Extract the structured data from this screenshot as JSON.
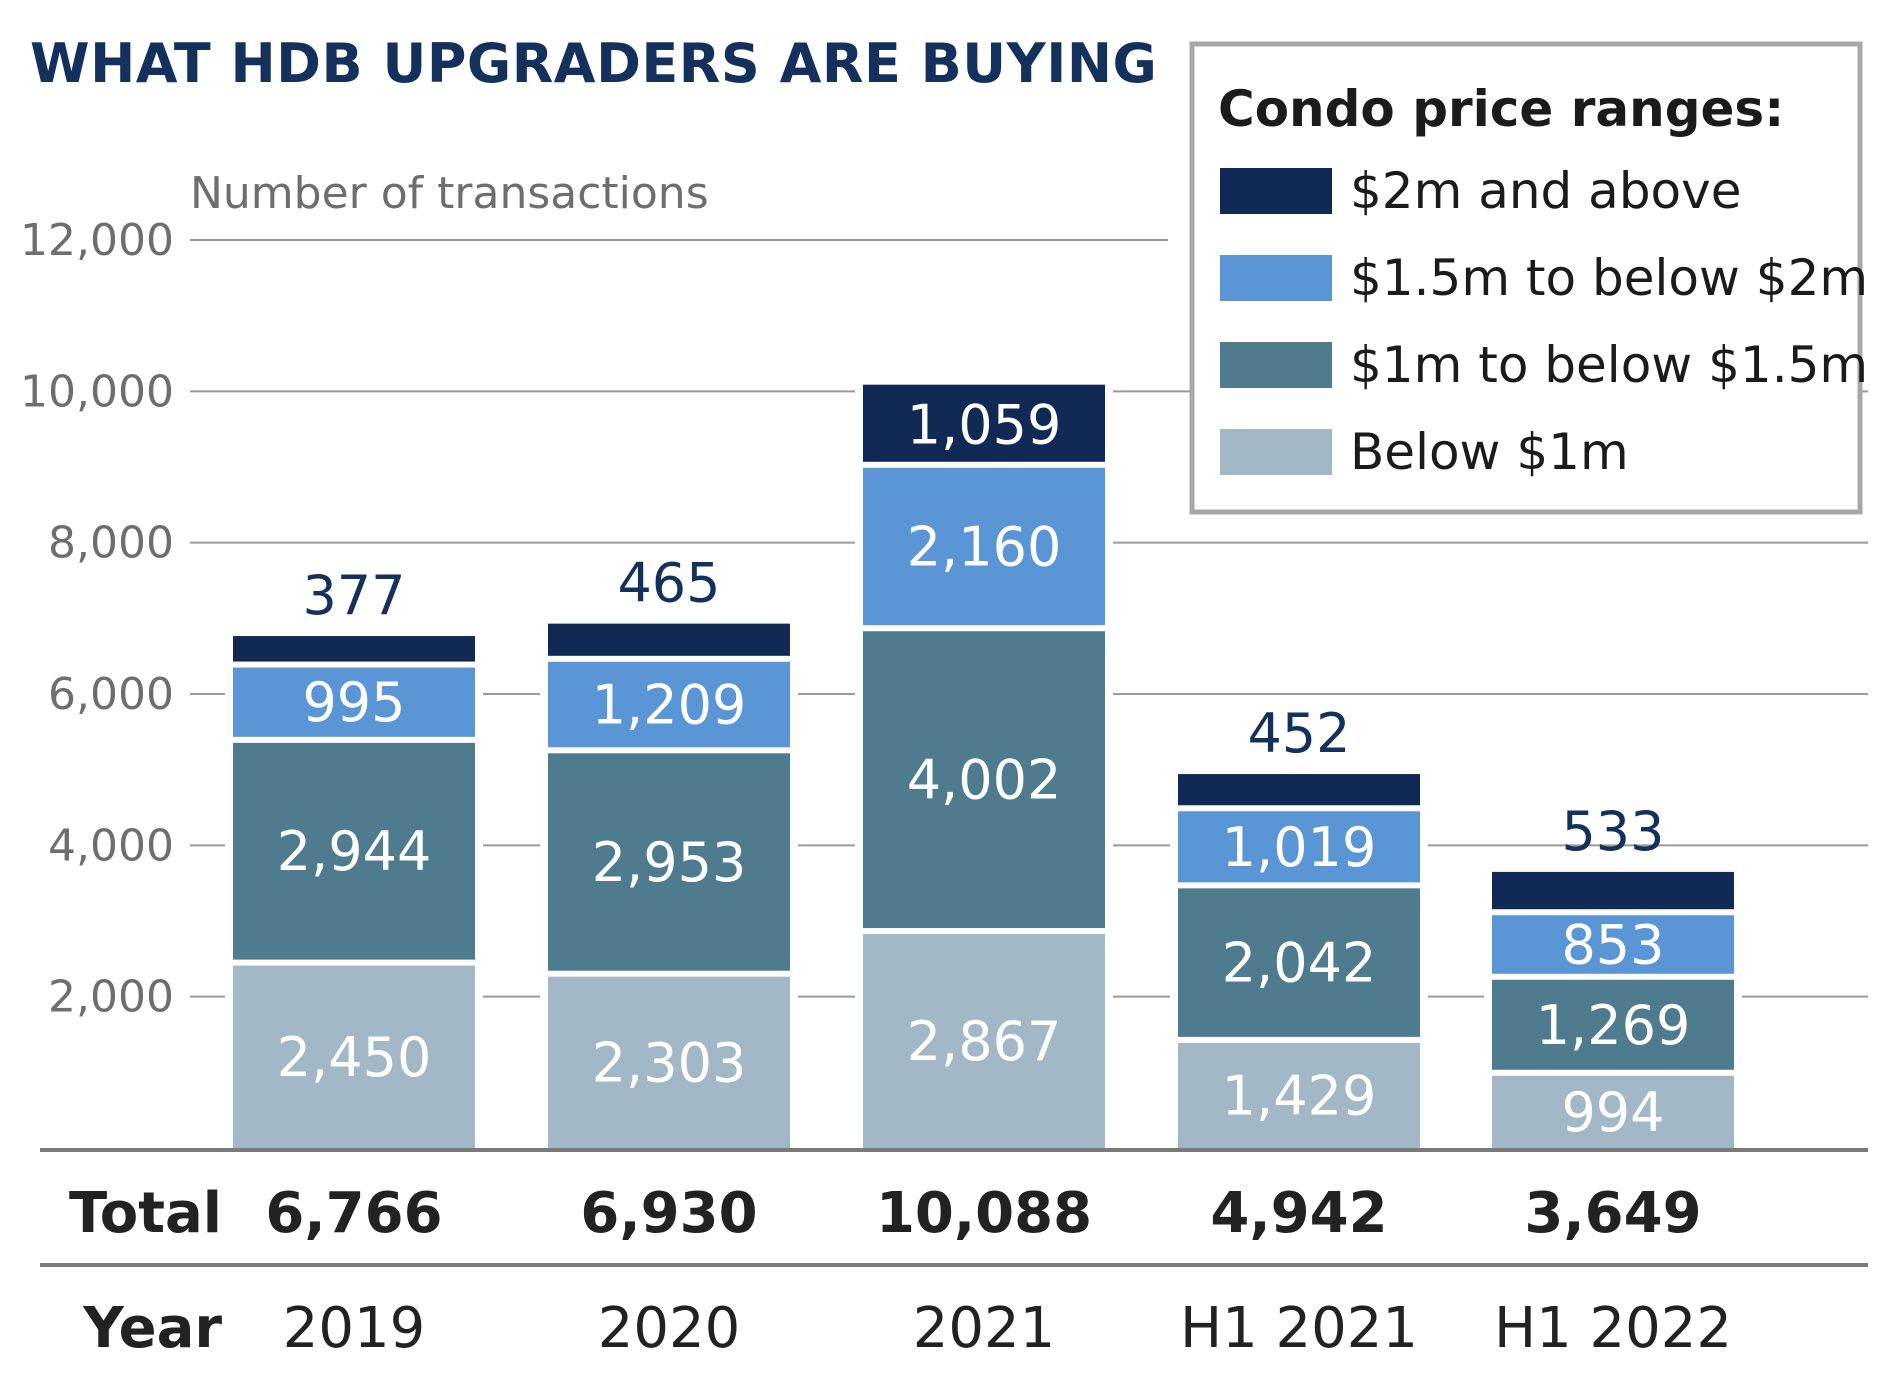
{
  "chart_data": {
    "type": "bar",
    "stacked": true,
    "title": "WHAT HDB UPGRADERS ARE BUYING",
    "ylabel": "Number of transactions",
    "ylim": [
      0,
      12000
    ],
    "yticks": [
      2000,
      4000,
      6000,
      8000,
      10000,
      12000
    ],
    "ytick_labels": [
      "2,000",
      "4,000",
      "6,000",
      "8,000",
      "10,000",
      "12,000"
    ],
    "grid": true,
    "legend_placement": "top-right",
    "legend_title": "Condo price ranges:",
    "total_row_label": "Total",
    "year_row_label": "Year",
    "categories": [
      "2019",
      "2020",
      "2021",
      "H1 2021",
      "H1 2022"
    ],
    "totals": [
      6766,
      6930,
      10088,
      4942,
      3649
    ],
    "total_labels": [
      "6,766",
      "6,930",
      "10,088",
      "4,942",
      "3,649"
    ],
    "series": [
      {
        "name": "Below $1m",
        "color": "#a2b8c6",
        "values": [
          2450,
          2303,
          2867,
          1429,
          994
        ],
        "labels": [
          "2,450",
          "2,303",
          "2,867",
          "1,429",
          "994"
        ]
      },
      {
        "name": "$1m to below $1.5m",
        "color": "#4f7b8f",
        "values": [
          2944,
          2953,
          4002,
          2042,
          1269
        ],
        "labels": [
          "2,944",
          "2,953",
          "4,002",
          "2,042",
          "1,269"
        ]
      },
      {
        "name": "$1.5m to below $2m",
        "color": "#5a96d6",
        "values": [
          995,
          1209,
          2160,
          1019,
          853
        ],
        "labels": [
          "995",
          "1,209",
          "2,160",
          "1,019",
          "853"
        ]
      },
      {
        "name": "$2m and above",
        "color": "#102a55",
        "values": [
          377,
          465,
          1059,
          452,
          533
        ],
        "labels": [
          "377",
          "465",
          "1,059",
          "452",
          "533"
        ]
      }
    ]
  }
}
